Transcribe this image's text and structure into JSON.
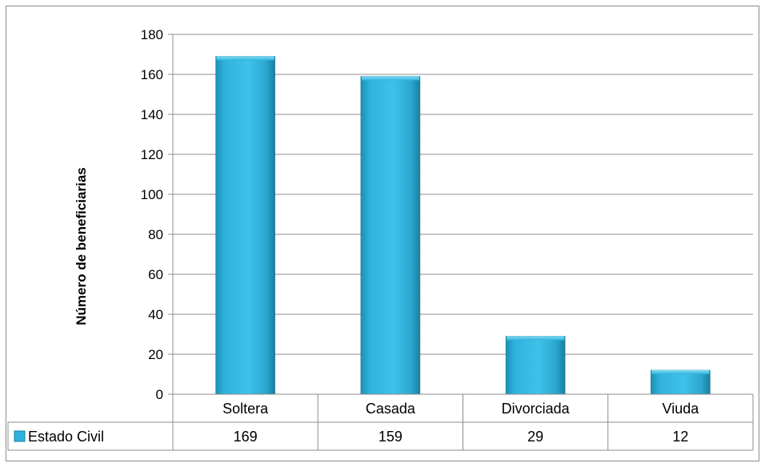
{
  "chart_data": {
    "type": "bar",
    "categories": [
      "Soltera",
      "Casada",
      "Divorciada",
      "Viuda"
    ],
    "series": [
      {
        "name": "Estado Civil",
        "values": [
          169,
          159,
          29,
          12
        ]
      }
    ],
    "title": "",
    "xlabel": "",
    "ylabel": "Número de beneficiarias",
    "ylim": [
      0,
      180
    ],
    "yticks": [
      0,
      20,
      40,
      60,
      80,
      100,
      120,
      140,
      160,
      180
    ],
    "grid": true,
    "data_table": true,
    "bar_color": "#2fb2dc",
    "legend_key_color": "#2fb2dc"
  }
}
